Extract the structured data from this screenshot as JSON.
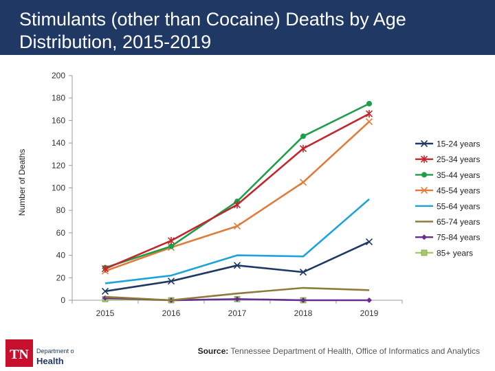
{
  "header": {
    "title": "Stimulants (other than Cocaine) Deaths by Age Distribution, 2015-2019"
  },
  "footer": {
    "logo_text_tn": "TN",
    "logo_text_dept": "Department of",
    "logo_text_health": "Health",
    "source_label": "Source:",
    "source_text": " Tennessee Department of Health, Office of Informatics and Analytics"
  },
  "chart_data": {
    "type": "line",
    "title": "",
    "xlabel": "",
    "ylabel": "Number of Deaths",
    "categories": [
      "2015",
      "2016",
      "2017",
      "2018",
      "2019"
    ],
    "ylim": [
      0,
      200
    ],
    "yticks": [
      0,
      20,
      40,
      60,
      80,
      100,
      120,
      140,
      160,
      180,
      200
    ],
    "grid": false,
    "legend_position": "right",
    "series": [
      {
        "name": "15-24 years",
        "values": [
          8,
          17,
          31,
          25,
          52
        ],
        "color": "#1f3864",
        "marker": "x"
      },
      {
        "name": "25-34 years",
        "values": [
          28,
          53,
          85,
          135,
          166
        ],
        "color": "#c0282d",
        "marker": "star"
      },
      {
        "name": "35-44 years",
        "values": [
          29,
          48,
          88,
          146,
          175
        ],
        "color": "#1e9e4a",
        "marker": "circle"
      },
      {
        "name": "45-54 years",
        "values": [
          26,
          47,
          66,
          105,
          159
        ],
        "color": "#e07b39",
        "marker": "x"
      },
      {
        "name": "55-64 years",
        "values": [
          15,
          22,
          40,
          39,
          90
        ],
        "color": "#1ba3dc",
        "marker": "dash"
      },
      {
        "name": "65-74 years",
        "values": [
          3,
          0,
          6,
          11,
          9
        ],
        "color": "#8c7b3a",
        "marker": "dash"
      },
      {
        "name": "75-84 years",
        "values": [
          2,
          0,
          1,
          0,
          0
        ],
        "color": "#6a2c91",
        "marker": "diamond"
      },
      {
        "name": "85+ years",
        "values": [
          1,
          0,
          1,
          0,
          null
        ],
        "color": "#a5c96e",
        "marker": "square"
      }
    ]
  }
}
